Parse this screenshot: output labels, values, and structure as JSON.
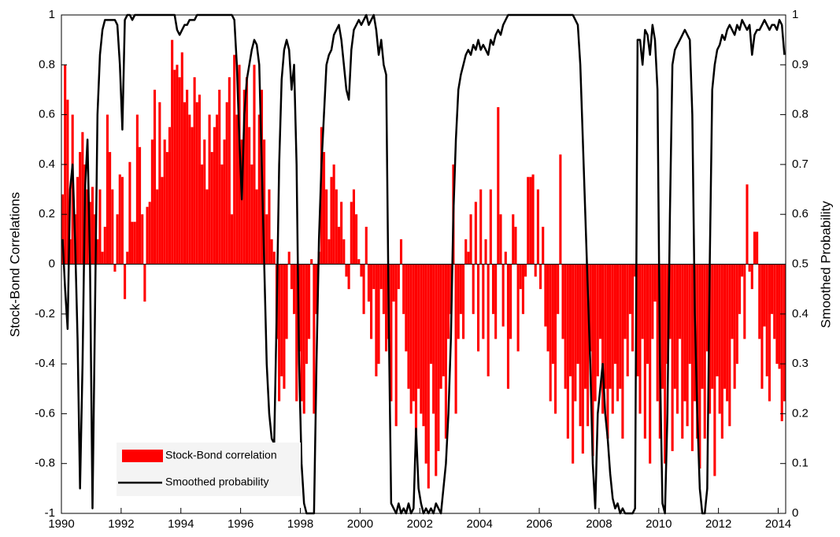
{
  "chart_data": {
    "type": "bar_line",
    "ylabel": "Stock-Bond Correlations",
    "y2label": "Smoothed Probability",
    "xlim": [
      1990,
      2014.25
    ],
    "xticks": [
      1990,
      1992,
      1994,
      1996,
      1998,
      2000,
      2002,
      2004,
      2006,
      2008,
      2010,
      2012,
      2014
    ],
    "ylim": [
      -1,
      1
    ],
    "yticks": [
      -1,
      -0.8,
      -0.6,
      -0.4,
      -0.2,
      0,
      0.2,
      0.4,
      0.6,
      0.8,
      1
    ],
    "y2lim": [
      0,
      1
    ],
    "y2ticks": [
      0,
      0.1,
      0.2,
      0.3,
      0.4,
      0.5,
      0.6,
      0.7,
      0.8,
      0.9,
      1
    ],
    "legend": "lower left",
    "x": [
      1990,
      1990.083,
      1990.167,
      1990.25,
      1990.333,
      1990.417,
      1990.5,
      1990.583,
      1990.667,
      1990.75,
      1990.833,
      1990.917,
      1991,
      1991.083,
      1991.167,
      1991.25,
      1991.333,
      1991.417,
      1991.5,
      1991.583,
      1991.667,
      1991.75,
      1991.833,
      1991.917,
      1992,
      1992.083,
      1992.167,
      1992.25,
      1992.333,
      1992.417,
      1992.5,
      1992.583,
      1992.667,
      1992.75,
      1992.833,
      1992.917,
      1993,
      1993.083,
      1993.167,
      1993.25,
      1993.333,
      1993.417,
      1993.5,
      1993.583,
      1993.667,
      1993.75,
      1993.833,
      1993.917,
      1994,
      1994.083,
      1994.167,
      1994.25,
      1994.333,
      1994.417,
      1994.5,
      1994.583,
      1994.667,
      1994.75,
      1994.833,
      1994.917,
      1995,
      1995.083,
      1995.167,
      1995.25,
      1995.333,
      1995.417,
      1995.5,
      1995.583,
      1995.667,
      1995.75,
      1995.833,
      1995.917,
      1996,
      1996.083,
      1996.167,
      1996.25,
      1996.333,
      1996.417,
      1996.5,
      1996.583,
      1996.667,
      1996.75,
      1996.833,
      1996.917,
      1997,
      1997.083,
      1997.167,
      1997.25,
      1997.333,
      1997.417,
      1997.5,
      1997.583,
      1997.667,
      1997.75,
      1997.833,
      1997.917,
      1998,
      1998.083,
      1998.167,
      1998.25,
      1998.333,
      1998.417,
      1998.5,
      1998.583,
      1998.667,
      1998.75,
      1998.833,
      1998.917,
      1999,
      1999.083,
      1999.167,
      1999.25,
      1999.333,
      1999.417,
      1999.5,
      1999.583,
      1999.667,
      1999.75,
      1999.833,
      1999.917,
      2000,
      2000.083,
      2000.167,
      2000.25,
      2000.333,
      2000.417,
      2000.5,
      2000.583,
      2000.667,
      2000.75,
      2000.833,
      2000.917,
      2001,
      2001.083,
      2001.167,
      2001.25,
      2001.333,
      2001.417,
      2001.5,
      2001.583,
      2001.667,
      2001.75,
      2001.833,
      2001.917,
      2002,
      2002.083,
      2002.167,
      2002.25,
      2002.333,
      2002.417,
      2002.5,
      2002.583,
      2002.667,
      2002.75,
      2002.833,
      2002.917,
      2003,
      2003.083,
      2003.167,
      2003.25,
      2003.333,
      2003.417,
      2003.5,
      2003.583,
      2003.667,
      2003.75,
      2003.833,
      2003.917,
      2004,
      2004.083,
      2004.167,
      2004.25,
      2004.333,
      2004.417,
      2004.5,
      2004.583,
      2004.667,
      2004.75,
      2004.833,
      2004.917,
      2005,
      2005.083,
      2005.167,
      2005.25,
      2005.333,
      2005.417,
      2005.5,
      2005.583,
      2005.667,
      2005.75,
      2005.833,
      2005.917,
      2006,
      2006.083,
      2006.167,
      2006.25,
      2006.333,
      2006.417,
      2006.5,
      2006.583,
      2006.667,
      2006.75,
      2006.833,
      2006.917,
      2007,
      2007.083,
      2007.167,
      2007.25,
      2007.333,
      2007.417,
      2007.5,
      2007.583,
      2007.667,
      2007.75,
      2007.833,
      2007.917,
      2008,
      2008.083,
      2008.167,
      2008.25,
      2008.333,
      2008.417,
      2008.5,
      2008.583,
      2008.667,
      2008.75,
      2008.833,
      2008.917,
      2009,
      2009.083,
      2009.167,
      2009.25,
      2009.333,
      2009.417,
      2009.5,
      2009.583,
      2009.667,
      2009.75,
      2009.833,
      2009.917,
      2010,
      2010.083,
      2010.167,
      2010.25,
      2010.333,
      2010.417,
      2010.5,
      2010.583,
      2010.667,
      2010.75,
      2010.833,
      2010.917,
      2011,
      2011.083,
      2011.167,
      2011.25,
      2011.333,
      2011.417,
      2011.5,
      2011.583,
      2011.667,
      2011.75,
      2011.833,
      2011.917,
      2012,
      2012.083,
      2012.167,
      2012.25,
      2012.333,
      2012.417,
      2012.5,
      2012.583,
      2012.667,
      2012.75,
      2012.833,
      2012.917,
      2013,
      2013.083,
      2013.167,
      2013.25,
      2013.333,
      2013.417,
      2013.5,
      2013.583,
      2013.667,
      2013.75,
      2013.833,
      2013.917,
      2014,
      2014.083,
      2014.167
    ],
    "series": [
      {
        "name": "Stock-Bond correlation",
        "color": "#ff0000",
        "kind": "bar",
        "values": [
          0.28,
          0.8,
          0.66,
          0.1,
          0.6,
          0.2,
          0.35,
          0.45,
          0.53,
          0.4,
          0.3,
          0.25,
          0.31,
          0.2,
          0.1,
          0.3,
          0.05,
          0.15,
          0.6,
          0.45,
          0.3,
          -0.03,
          0.2,
          0.36,
          0.35,
          -0.14,
          0.05,
          0.41,
          0.17,
          0.17,
          0.6,
          0.47,
          0.2,
          -0.15,
          0.23,
          0.25,
          0.5,
          0.7,
          0.3,
          0.65,
          0.35,
          0.5,
          0.45,
          0.55,
          0.9,
          0.78,
          0.8,
          0.75,
          0.85,
          0.65,
          0.7,
          0.6,
          0.55,
          0.75,
          0.65,
          0.68,
          0.4,
          0.5,
          0.3,
          0.6,
          0.45,
          0.55,
          0.6,
          0.7,
          0.4,
          0.5,
          0.65,
          0.75,
          0.2,
          0.84,
          0.6,
          0.8,
          0.5,
          0.7,
          0.75,
          0.55,
          0.4,
          0.8,
          0.3,
          0.6,
          0.7,
          0.5,
          0.2,
          0.3,
          0.1,
          0.05,
          -0.3,
          -0.55,
          -0.45,
          -0.5,
          -0.3,
          0.05,
          -0.1,
          -0.2,
          -0.55,
          -0.35,
          -0.55,
          -0.6,
          -0.4,
          -0.3,
          0.02,
          -0.6,
          -0.2,
          0.05,
          0.55,
          0.45,
          0.3,
          0.1,
          0.35,
          0.4,
          0.3,
          0.15,
          0.25,
          0.1,
          -0.05,
          -0.1,
          0.25,
          0.3,
          0.2,
          0.02,
          -0.05,
          -0.2,
          0.15,
          -0.15,
          -0.3,
          -0.1,
          -0.45,
          -0.4,
          -0.1,
          -0.2,
          -0.35,
          -0.3,
          -0.55,
          -0.15,
          -0.65,
          -0.1,
          0.1,
          -0.2,
          -0.35,
          -0.5,
          -0.6,
          -0.55,
          -0.75,
          -0.5,
          -0.6,
          -0.65,
          -0.8,
          -0.9,
          -0.4,
          -0.6,
          -0.85,
          -0.75,
          -0.5,
          -0.45,
          -0.7,
          -0.3,
          -0.2,
          0.4,
          -0.6,
          -0.3,
          -0.2,
          -0.3,
          0.1,
          0.05,
          0.2,
          -0.2,
          0.25,
          -0.35,
          0.3,
          -0.3,
          0.1,
          -0.45,
          0.3,
          -0.2,
          -0.3,
          0.63,
          0.2,
          -0.25,
          0.05,
          -0.5,
          -0.3,
          0.2,
          0.15,
          -0.35,
          -0.1,
          -0.2,
          -0.05,
          0.35,
          0.35,
          0.36,
          -0.05,
          0.3,
          -0.1,
          0.15,
          -0.25,
          -0.35,
          -0.55,
          -0.4,
          -0.6,
          -0.2,
          0.44,
          -0.3,
          -0.5,
          -0.7,
          -0.45,
          -0.8,
          -0.55,
          -0.4,
          -0.65,
          -0.76,
          -0.5,
          -0.65,
          -0.35,
          -0.77,
          -0.55,
          -0.45,
          -0.3,
          -0.6,
          -0.5,
          -0.7,
          -0.5,
          -0.6,
          -0.4,
          -0.55,
          -0.5,
          -0.7,
          -0.3,
          -0.45,
          -0.2,
          -0.35,
          -0.05,
          -0.45,
          -0.6,
          -0.3,
          -0.7,
          -0.4,
          -0.8,
          -0.3,
          -0.15,
          -0.55,
          -0.7,
          -0.5,
          -0.8,
          -0.4,
          -0.3,
          -0.75,
          -0.5,
          -0.6,
          -0.3,
          -0.7,
          -0.55,
          -0.65,
          -0.4,
          -0.75,
          -0.55,
          -0.7,
          -0.82,
          -0.5,
          -0.7,
          -0.35,
          -0.6,
          -0.5,
          -0.85,
          -0.45,
          -0.6,
          -0.7,
          -0.5,
          -0.55,
          -0.65,
          -0.3,
          -0.5,
          -0.4,
          -0.2,
          -0.05,
          -0.3,
          0.32,
          -0.03,
          -0.1,
          0.13,
          0.13,
          -0.3,
          -0.5,
          -0.25,
          -0.45,
          -0.55,
          -0.2,
          -0.3,
          -0.4,
          -0.42,
          -0.63,
          -0.55
        ]
      },
      {
        "name": "Smoothed probability",
        "color": "#000000",
        "kind": "line",
        "axis": "y2",
        "values": [
          0.55,
          0.45,
          0.37,
          0.65,
          0.7,
          0.55,
          0.35,
          0.05,
          0.3,
          0.65,
          0.75,
          0.5,
          0.01,
          0.4,
          0.8,
          0.92,
          0.97,
          0.99,
          0.99,
          0.99,
          0.99,
          0.99,
          0.98,
          0.9,
          0.77,
          0.99,
          1,
          1,
          0.99,
          1,
          1,
          1,
          1,
          1,
          1,
          1,
          1,
          1,
          1,
          1,
          1,
          1,
          1,
          1,
          1,
          1,
          0.97,
          0.96,
          0.97,
          0.98,
          0.98,
          0.99,
          0.99,
          0.99,
          1,
          1,
          1,
          1,
          1,
          1,
          1,
          1,
          1,
          1,
          1,
          1,
          1,
          1,
          1,
          0.99,
          0.9,
          0.75,
          0.63,
          0.8,
          0.87,
          0.9,
          0.93,
          0.95,
          0.94,
          0.9,
          0.7,
          0.5,
          0.3,
          0.2,
          0.15,
          0.14,
          0.4,
          0.7,
          0.87,
          0.93,
          0.95,
          0.93,
          0.85,
          0.9,
          0.7,
          0.3,
          0.1,
          0.02,
          0,
          0,
          0,
          0,
          0.3,
          0.55,
          0.7,
          0.8,
          0.9,
          0.92,
          0.93,
          0.96,
          0.97,
          0.98,
          0.95,
          0.9,
          0.85,
          0.83,
          0.93,
          0.97,
          0.98,
          0.99,
          0.98,
          0.99,
          1,
          0.98,
          0.99,
          1,
          0.97,
          0.92,
          0.95,
          0.9,
          0.88,
          0.4,
          0.02,
          0.01,
          0,
          0.02,
          0,
          0.01,
          0,
          0.02,
          0,
          0.01,
          0.17,
          0.05,
          0.02,
          0,
          0.01,
          0,
          0.01,
          0,
          0.02,
          0.01,
          0,
          0.05,
          0.1,
          0.2,
          0.35,
          0.6,
          0.75,
          0.85,
          0.88,
          0.9,
          0.92,
          0.93,
          0.92,
          0.94,
          0.93,
          0.95,
          0.93,
          0.94,
          0.93,
          0.92,
          0.95,
          0.94,
          0.96,
          0.97,
          0.96,
          0.98,
          0.99,
          1,
          1,
          1,
          1,
          1,
          1,
          1,
          1,
          1,
          1,
          1,
          1,
          1,
          1,
          1,
          1,
          1,
          1,
          1,
          1,
          1,
          1,
          1,
          1,
          1,
          1,
          1,
          0.99,
          0.98,
          0.9,
          0.75,
          0.6,
          0.45,
          0.3,
          0.1,
          0.01,
          0.2,
          0.25,
          0.3,
          0.2,
          0.15,
          0.08,
          0.03,
          0.01,
          0.02,
          0,
          0.01,
          0,
          0,
          0,
          0,
          0.01,
          0.95,
          0.95,
          0.9,
          0.97,
          0.96,
          0.92,
          0.98,
          0.95,
          0.85,
          0.3,
          0.02,
          0,
          0.2,
          0.6,
          0.9,
          0.93,
          0.94,
          0.95,
          0.96,
          0.97,
          0.96,
          0.95,
          0.8,
          0.4,
          0.2,
          0.05,
          0,
          0,
          0.05,
          0.5,
          0.85,
          0.9,
          0.93,
          0.94,
          0.96,
          0.95,
          0.97,
          0.98,
          0.97,
          0.96,
          0.98,
          0.97,
          0.99,
          0.98,
          0.97,
          0.98,
          0.92,
          0.96,
          0.97,
          0.97,
          0.98,
          0.99,
          0.98,
          0.97,
          0.98,
          0.98,
          0.97,
          0.99,
          0.98,
          0.92
        ]
      }
    ]
  }
}
